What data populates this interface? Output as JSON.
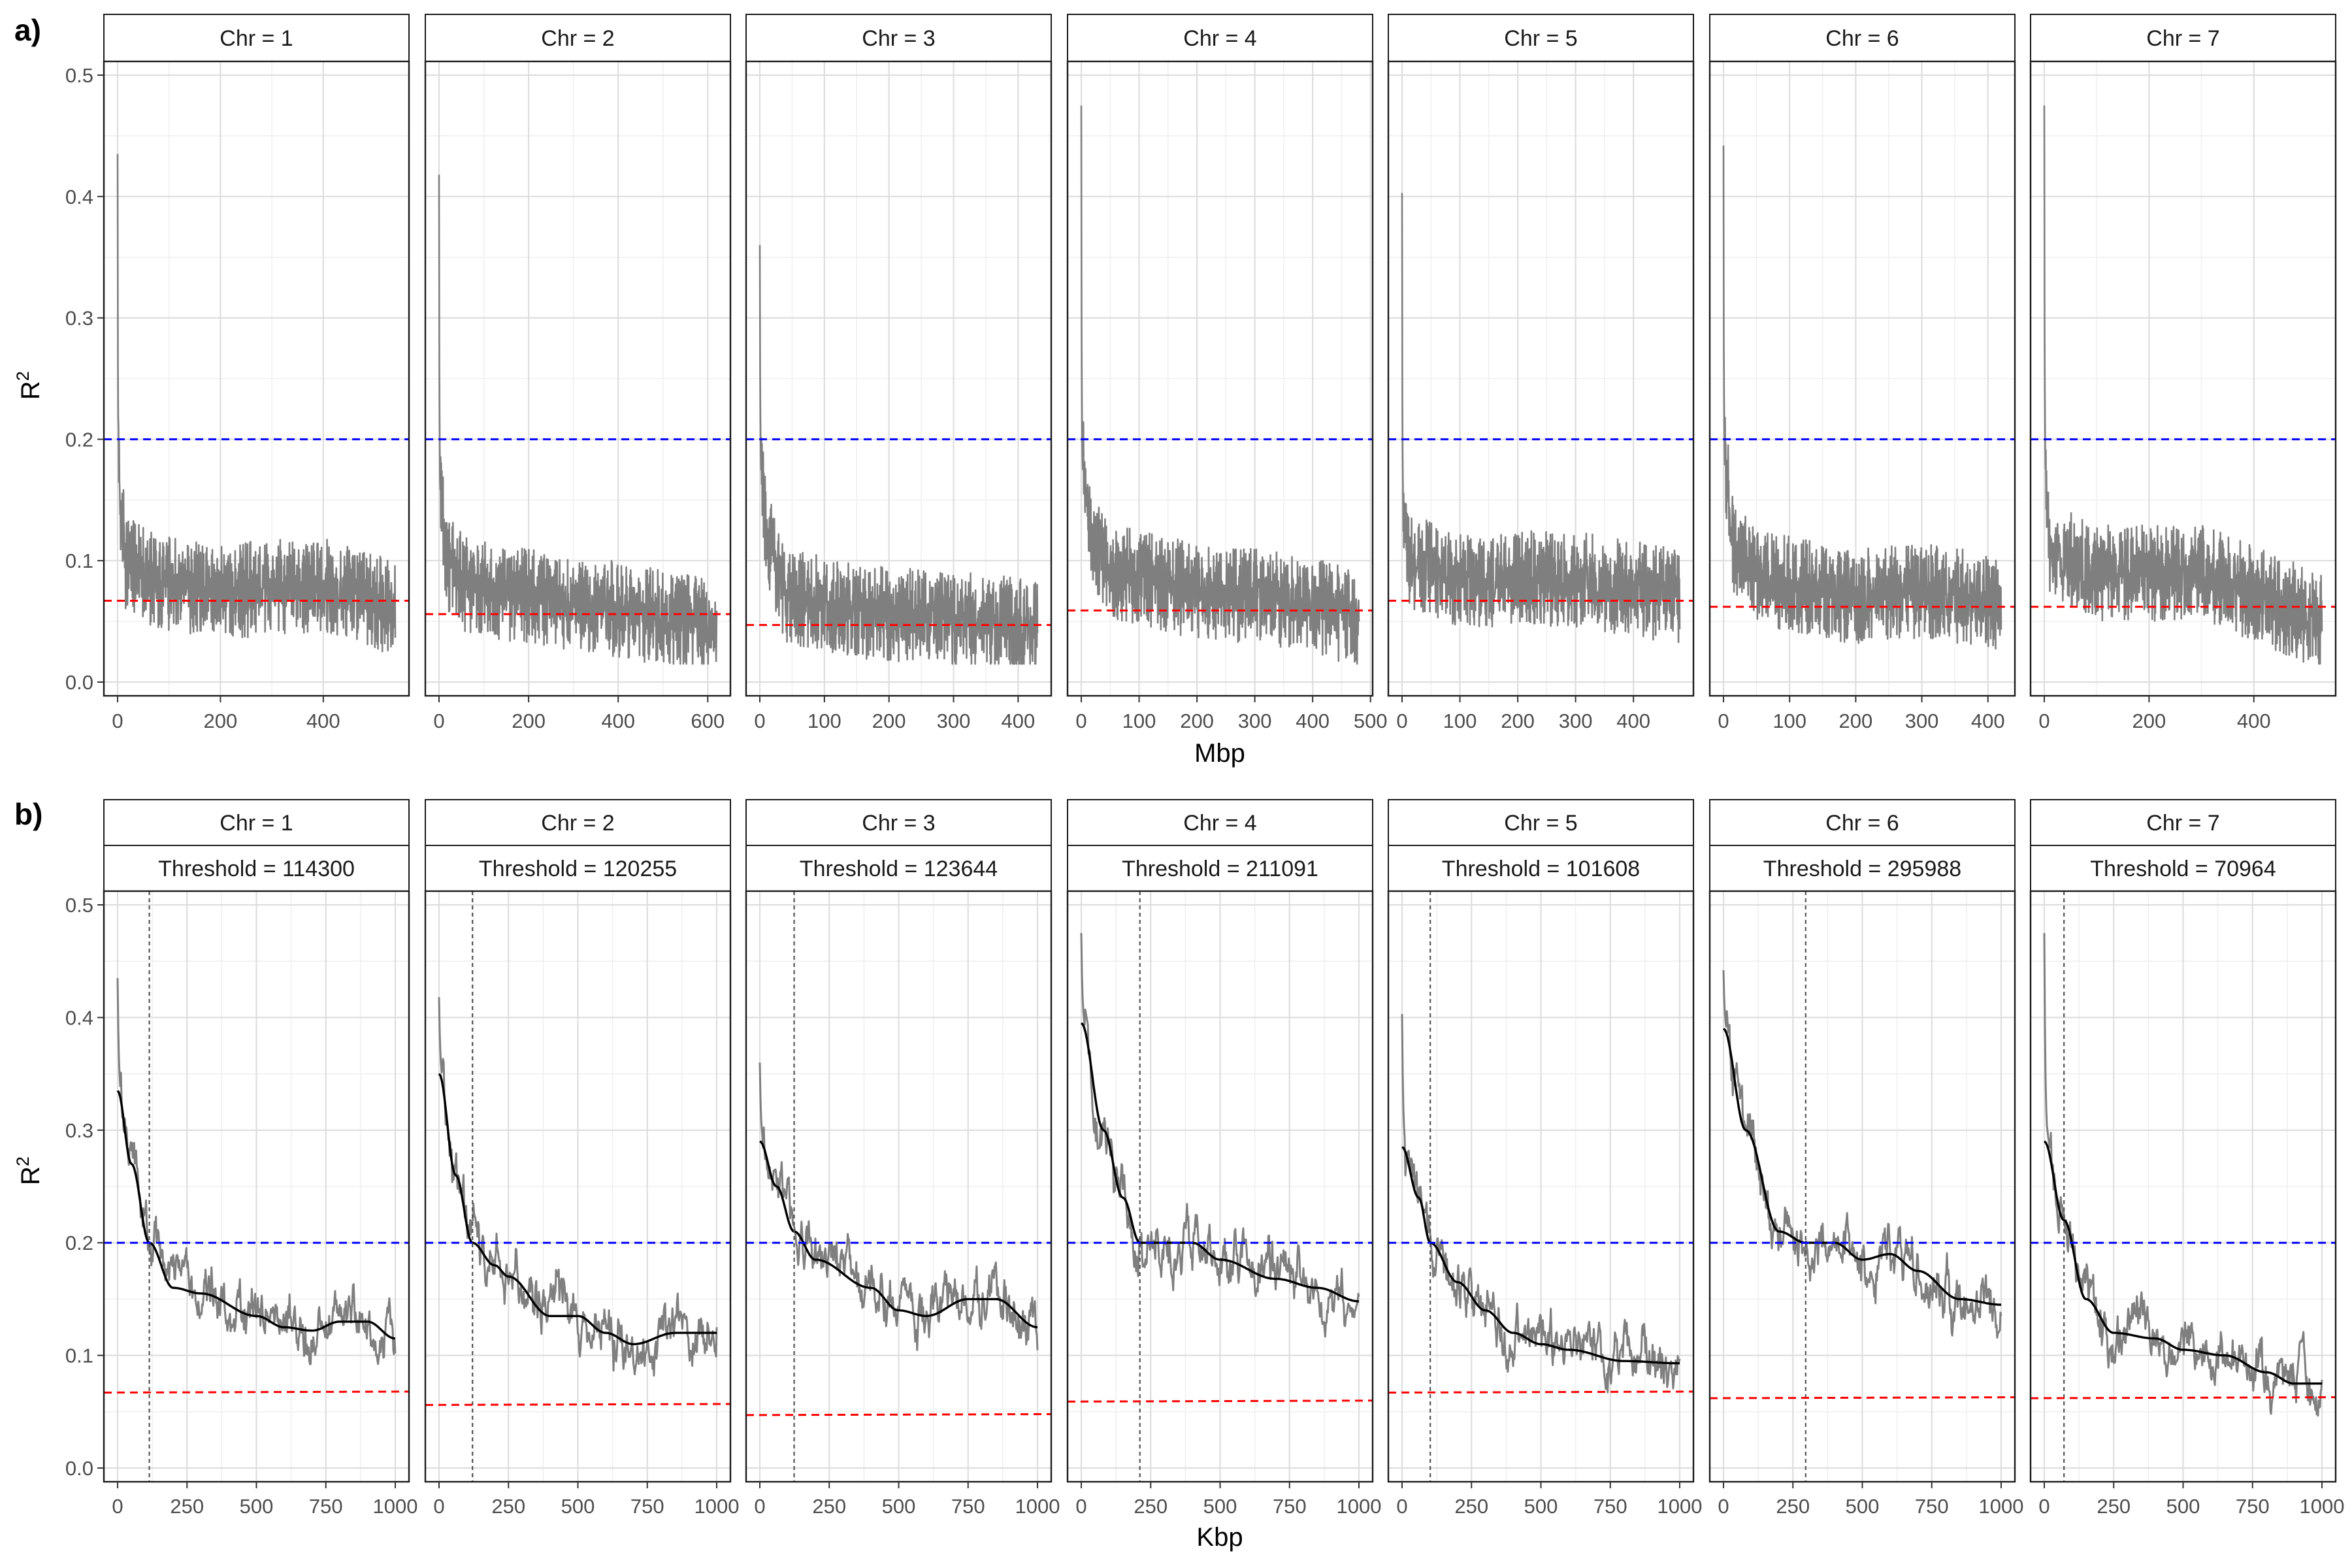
{
  "figure": {
    "panels": [
      {
        "label": "a)",
        "xlabel": "Mbp",
        "ylabel_base": "R",
        "ylabel_sup": "2"
      },
      {
        "label": "b)",
        "xlabel": "Kbp",
        "ylabel_base": "R",
        "ylabel_sup": "2"
      }
    ]
  },
  "colors": {
    "trace": "#7f7f7f",
    "smooth": "#000000",
    "blue_line": "#0000ff",
    "red_line": "#ff0000",
    "threshold_line": "#555555",
    "grid": "#dedede",
    "strip_bg": "#ffffff",
    "border": "#1a1a1a"
  },
  "chart_data": [
    {
      "type": "line",
      "panel": "a)",
      "xlabel": "Mbp",
      "ylabel": "R2",
      "ylim": [
        0,
        0.5
      ],
      "yticks": [
        0.0,
        0.1,
        0.2,
        0.3,
        0.4,
        0.5
      ],
      "ytick_labels": [
        "0.0",
        "0.1",
        "0.2",
        "0.3",
        "0.4",
        "0.5"
      ],
      "hline_blue": 0.2,
      "grid": true,
      "facets": [
        {
          "strip": "Chr = 1",
          "xmax": 540,
          "xticks": [
            0,
            200,
            400
          ],
          "red": 0.067,
          "peak": 0.435,
          "trend": [
            [
              0,
              0.18
            ],
            [
              15,
              0.1
            ],
            [
              60,
              0.085
            ],
            [
              200,
              0.075
            ],
            [
              400,
              0.08
            ],
            [
              540,
              0.06
            ]
          ]
        },
        {
          "strip": "Chr = 2",
          "xmax": 620,
          "xticks": [
            0,
            200,
            400,
            600
          ],
          "red": 0.056,
          "peak": 0.418,
          "trend": [
            [
              0,
              0.18
            ],
            [
              15,
              0.1
            ],
            [
              60,
              0.08
            ],
            [
              200,
              0.07
            ],
            [
              400,
              0.06
            ],
            [
              620,
              0.045
            ]
          ]
        },
        {
          "strip": "Chr = 3",
          "xmax": 430,
          "xticks": [
            0,
            100,
            200,
            300,
            400
          ],
          "red": 0.047,
          "peak": 0.36,
          "trend": [
            [
              0,
              0.2
            ],
            [
              10,
              0.12
            ],
            [
              40,
              0.07
            ],
            [
              200,
              0.055
            ],
            [
              350,
              0.05
            ],
            [
              430,
              0.045
            ]
          ]
        },
        {
          "strip": "Chr = 4",
          "xmax": 480,
          "xticks": [
            0,
            100,
            200,
            300,
            400,
            500
          ],
          "red": 0.059,
          "peak": 0.475,
          "trend": [
            [
              0,
              0.2
            ],
            [
              15,
              0.12
            ],
            [
              60,
              0.09
            ],
            [
              200,
              0.075
            ],
            [
              400,
              0.065
            ],
            [
              480,
              0.05
            ]
          ]
        },
        {
          "strip": "Chr = 5",
          "xmax": 480,
          "xticks": [
            0,
            100,
            200,
            300,
            400
          ],
          "red": 0.067,
          "peak": 0.403,
          "trend": [
            [
              0,
              0.15
            ],
            [
              10,
              0.1
            ],
            [
              100,
              0.085
            ],
            [
              300,
              0.085
            ],
            [
              480,
              0.07
            ]
          ]
        },
        {
          "strip": "Chr = 6",
          "xmax": 420,
          "xticks": [
            0,
            100,
            200,
            300,
            400
          ],
          "red": 0.062,
          "peak": 0.442,
          "trend": [
            [
              0,
              0.2
            ],
            [
              15,
              0.11
            ],
            [
              60,
              0.085
            ],
            [
              200,
              0.07
            ],
            [
              300,
              0.075
            ],
            [
              420,
              0.065
            ]
          ]
        },
        {
          "strip": "Chr = 7",
          "xmax": 530,
          "xticks": [
            0,
            200,
            400
          ],
          "red": 0.062,
          "peak": 0.475,
          "trend": [
            [
              0,
              0.2
            ],
            [
              10,
              0.11
            ],
            [
              100,
              0.09
            ],
            [
              300,
              0.09
            ],
            [
              530,
              0.05
            ]
          ]
        }
      ]
    },
    {
      "type": "line",
      "panel": "b)",
      "xlabel": "Kbp",
      "ylabel": "R2",
      "ylim": [
        0,
        0.5
      ],
      "xlim": [
        0,
        1000
      ],
      "xticks": [
        0,
        250,
        500,
        750,
        1000
      ],
      "yticks": [
        0.0,
        0.1,
        0.2,
        0.3,
        0.4,
        0.5
      ],
      "ytick_labels": [
        "0.0",
        "0.1",
        "0.2",
        "0.3",
        "0.4",
        "0.5"
      ],
      "hline_blue": 0.2,
      "grid": true,
      "facets": [
        {
          "strip": "Chr = 1",
          "strip2": "Threshold = 114300",
          "threshold_kbp": 114.3,
          "red": 0.067,
          "peak": 0.435,
          "smooth": [
            [
              0,
              0.335
            ],
            [
              50,
              0.27
            ],
            [
              114.3,
              0.2
            ],
            [
              200,
              0.16
            ],
            [
              300,
              0.155
            ],
            [
              500,
              0.135
            ],
            [
              600,
              0.125
            ],
            [
              700,
              0.122
            ],
            [
              800,
              0.13
            ],
            [
              900,
              0.13
            ],
            [
              1000,
              0.115
            ]
          ]
        },
        {
          "strip": "Chr = 2",
          "strip2": "Threshold = 120255",
          "threshold_kbp": 120.3,
          "red": 0.056,
          "peak": 0.418,
          "smooth": [
            [
              0,
              0.35
            ],
            [
              60,
              0.26
            ],
            [
              120,
              0.2
            ],
            [
              200,
              0.18
            ],
            [
              250,
              0.17
            ],
            [
              400,
              0.135
            ],
            [
              500,
              0.135
            ],
            [
              600,
              0.12
            ],
            [
              700,
              0.11
            ],
            [
              850,
              0.12
            ],
            [
              1000,
              0.12
            ]
          ]
        },
        {
          "strip": "Chr = 3",
          "strip2": "Threshold = 123644",
          "threshold_kbp": 123.6,
          "red": 0.047,
          "peak": 0.36,
          "smooth": [
            [
              0,
              0.29
            ],
            [
              60,
              0.25
            ],
            [
              123.6,
              0.21
            ],
            [
              200,
              0.185
            ],
            [
              400,
              0.16
            ],
            [
              500,
              0.14
            ],
            [
              600,
              0.135
            ],
            [
              750,
              0.15
            ],
            [
              850,
              0.15
            ],
            [
              1000,
              0.125
            ]
          ]
        },
        {
          "strip": "Chr = 4",
          "strip2": "Threshold = 211091",
          "threshold_kbp": 211.1,
          "red": 0.059,
          "peak": 0.475,
          "smooth": [
            [
              0,
              0.395
            ],
            [
              80,
              0.3
            ],
            [
              150,
              0.24
            ],
            [
              211.1,
              0.2
            ],
            [
              300,
              0.2
            ],
            [
              400,
              0.2
            ],
            [
              500,
              0.185
            ],
            [
              700,
              0.168
            ],
            [
              850,
              0.16
            ],
            [
              1000,
              0.148
            ]
          ]
        },
        {
          "strip": "Chr = 5",
          "strip2": "Threshold = 101608",
          "threshold_kbp": 101.6,
          "red": 0.067,
          "peak": 0.403,
          "smooth": [
            [
              0,
              0.285
            ],
            [
              60,
              0.24
            ],
            [
              101.6,
              0.2
            ],
            [
              200,
              0.165
            ],
            [
              300,
              0.14
            ],
            [
              400,
              0.12
            ],
            [
              500,
              0.11
            ],
            [
              600,
              0.105
            ],
            [
              800,
              0.095
            ],
            [
              1000,
              0.093
            ]
          ]
        },
        {
          "strip": "Chr = 6",
          "strip2": "Threshold = 295988",
          "threshold_kbp": 296.0,
          "red": 0.062,
          "peak": 0.442,
          "smooth": [
            [
              0,
              0.39
            ],
            [
              80,
              0.3
            ],
            [
              200,
              0.21
            ],
            [
              296,
              0.2
            ],
            [
              400,
              0.2
            ],
            [
              500,
              0.185
            ],
            [
              600,
              0.19
            ],
            [
              700,
              0.175
            ],
            [
              850,
              0.15
            ],
            [
              1000,
              0.145
            ]
          ]
        },
        {
          "strip": "Chr = 7",
          "strip2": "Threshold = 70964",
          "threshold_kbp": 71.0,
          "red": 0.062,
          "peak": 0.475,
          "smooth": [
            [
              0,
              0.29
            ],
            [
              71,
              0.22
            ],
            [
              150,
              0.15
            ],
            [
              250,
              0.12
            ],
            [
              400,
              0.115
            ],
            [
              500,
              0.105
            ],
            [
              650,
              0.1
            ],
            [
              800,
              0.085
            ],
            [
              900,
              0.075
            ],
            [
              1000,
              0.075
            ]
          ]
        }
      ]
    }
  ]
}
